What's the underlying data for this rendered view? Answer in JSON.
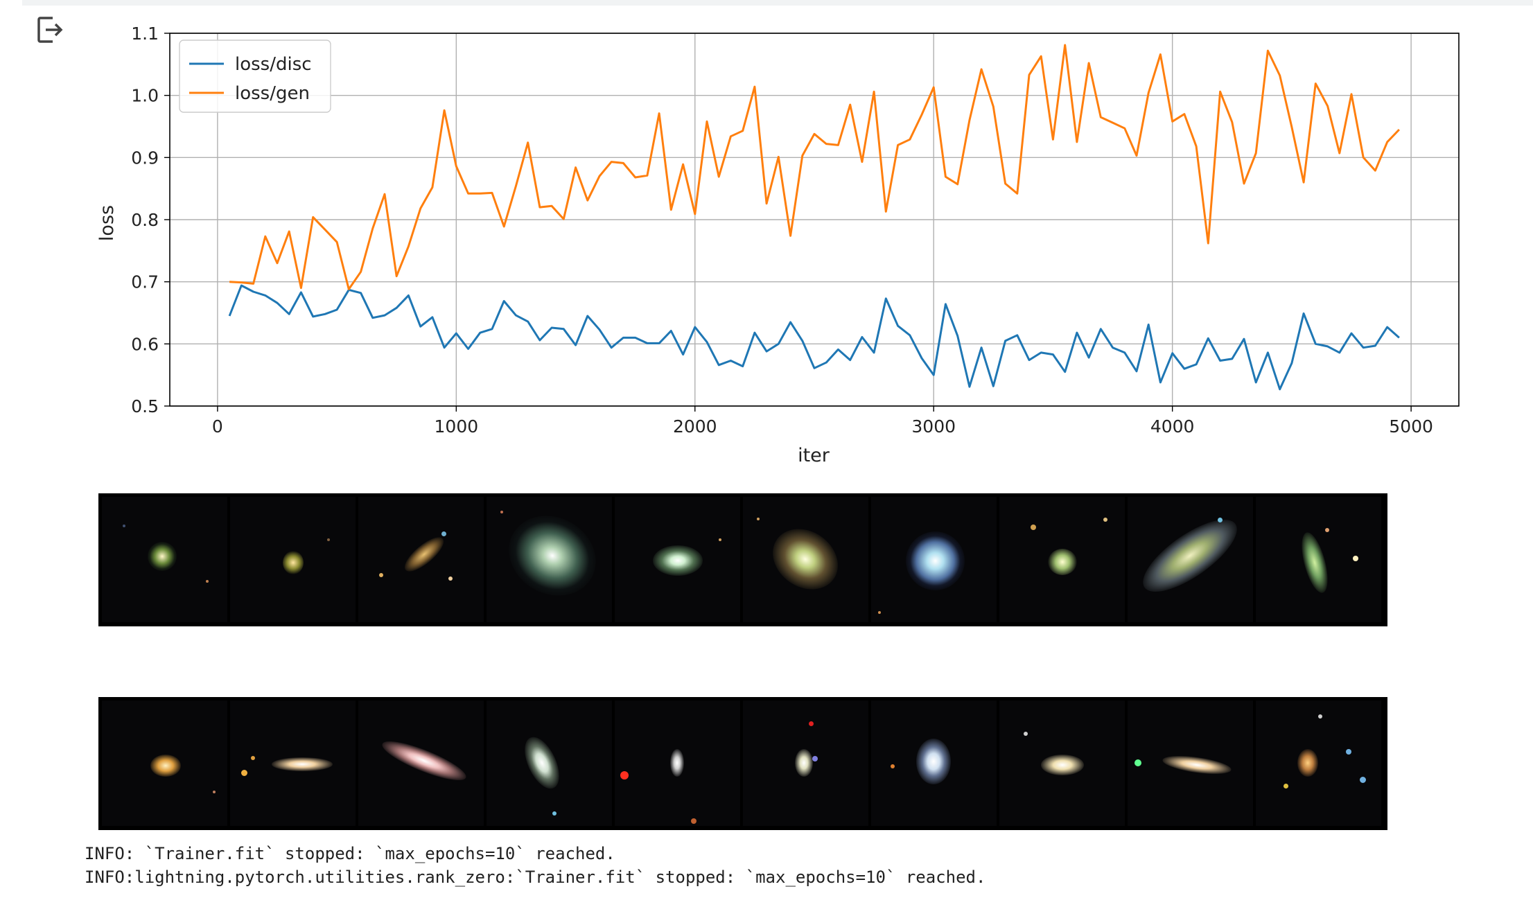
{
  "chart_data": {
    "type": "line",
    "xlabel": "iter",
    "ylabel": "loss",
    "xlim": [
      -200,
      5200
    ],
    "ylim": [
      0.5,
      1.1
    ],
    "xticks": [
      0,
      1000,
      2000,
      3000,
      4000,
      5000
    ],
    "yticks": [
      0.5,
      0.6,
      0.7,
      0.8,
      0.9,
      1.0,
      1.1
    ],
    "ytick_labels": [
      "0.5",
      "0.6",
      "0.7",
      "0.8",
      "0.9",
      "1.0",
      "1.1"
    ],
    "grid": true,
    "legend_position": "top-left",
    "x": [
      50,
      100,
      150,
      200,
      250,
      300,
      350,
      400,
      450,
      500,
      550,
      600,
      650,
      700,
      750,
      800,
      850,
      900,
      950,
      1000,
      1050,
      1100,
      1150,
      1200,
      1250,
      1300,
      1350,
      1400,
      1450,
      1500,
      1550,
      1600,
      1650,
      1700,
      1750,
      1800,
      1850,
      1900,
      1950,
      2000,
      2050,
      2100,
      2150,
      2200,
      2250,
      2300,
      2350,
      2400,
      2450,
      2500,
      2550,
      2600,
      2650,
      2700,
      2750,
      2800,
      2850,
      2900,
      2950,
      3000,
      3050,
      3100,
      3150,
      3200,
      3250,
      3300,
      3350,
      3400,
      3450,
      3500,
      3550,
      3600,
      3650,
      3700,
      3750,
      3800,
      3850,
      3900,
      3950,
      4000,
      4050,
      4100,
      4150,
      4200,
      4250,
      4300,
      4350,
      4400,
      4450,
      4500,
      4550,
      4600,
      4650,
      4700,
      4750,
      4800,
      4850,
      4900,
      4950
    ],
    "series": [
      {
        "name": "loss/disc",
        "color": "#1f77b4",
        "values": [
          0.645,
          0.694,
          0.684,
          0.678,
          0.666,
          0.648,
          0.683,
          0.644,
          0.648,
          0.655,
          0.687,
          0.682,
          0.642,
          0.646,
          0.658,
          0.678,
          0.628,
          0.643,
          0.594,
          0.617,
          0.592,
          0.618,
          0.624,
          0.669,
          0.646,
          0.636,
          0.606,
          0.626,
          0.624,
          0.598,
          0.645,
          0.623,
          0.594,
          0.61,
          0.61,
          0.601,
          0.601,
          0.621,
          0.583,
          0.627,
          0.603,
          0.566,
          0.573,
          0.564,
          0.618,
          0.588,
          0.6,
          0.635,
          0.605,
          0.561,
          0.57,
          0.591,
          0.574,
          0.611,
          0.586,
          0.673,
          0.629,
          0.614,
          0.577,
          0.55,
          0.664,
          0.613,
          0.531,
          0.594,
          0.532,
          0.605,
          0.614,
          0.574,
          0.586,
          0.583,
          0.555,
          0.618,
          0.578,
          0.624,
          0.594,
          0.586,
          0.556,
          0.631,
          0.538,
          0.585,
          0.56,
          0.567,
          0.609,
          0.573,
          0.576,
          0.608,
          0.538,
          0.586,
          0.527,
          0.569,
          0.649,
          0.6,
          0.596,
          0.586,
          0.617,
          0.594,
          0.597,
          0.627,
          0.61
        ]
      },
      {
        "name": "loss/gen",
        "color": "#ff7f0e",
        "values": [
          0.7,
          0.699,
          0.697,
          0.773,
          0.73,
          0.781,
          0.69,
          0.804,
          0.784,
          0.764,
          0.688,
          0.716,
          0.786,
          0.841,
          0.709,
          0.757,
          0.818,
          0.852,
          0.976,
          0.886,
          0.842,
          0.842,
          0.843,
          0.789,
          0.854,
          0.924,
          0.82,
          0.822,
          0.801,
          0.884,
          0.831,
          0.87,
          0.893,
          0.891,
          0.868,
          0.871,
          0.971,
          0.816,
          0.889,
          0.809,
          0.958,
          0.869,
          0.934,
          0.943,
          1.014,
          0.826,
          0.901,
          0.774,
          0.903,
          0.938,
          0.922,
          0.92,
          0.985,
          0.893,
          1.006,
          0.813,
          0.92,
          0.929,
          0.969,
          1.013,
          0.869,
          0.857,
          0.96,
          1.042,
          0.982,
          0.858,
          0.842,
          1.033,
          1.063,
          0.929,
          1.081,
          0.925,
          1.052,
          0.965,
          0.956,
          0.947,
          0.903,
          1.004,
          1.066,
          0.958,
          0.97,
          0.918,
          0.762,
          1.006,
          0.957,
          0.858,
          0.907,
          1.072,
          1.032,
          0.949,
          0.86,
          1.019,
          0.983,
          0.907,
          1.002,
          0.9,
          0.879,
          0.925,
          0.945
        ]
      }
    ]
  },
  "generated_strip_alt": "generated galaxy samples",
  "real_strip_alt": "real galaxy samples",
  "log": {
    "line1": "INFO: `Trainer.fit` stopped: `max_epochs=10` reached.",
    "line2": "INFO:lightning.pytorch.utilities.rank_zero:`Trainer.fit` stopped: `max_epochs=10` reached."
  }
}
